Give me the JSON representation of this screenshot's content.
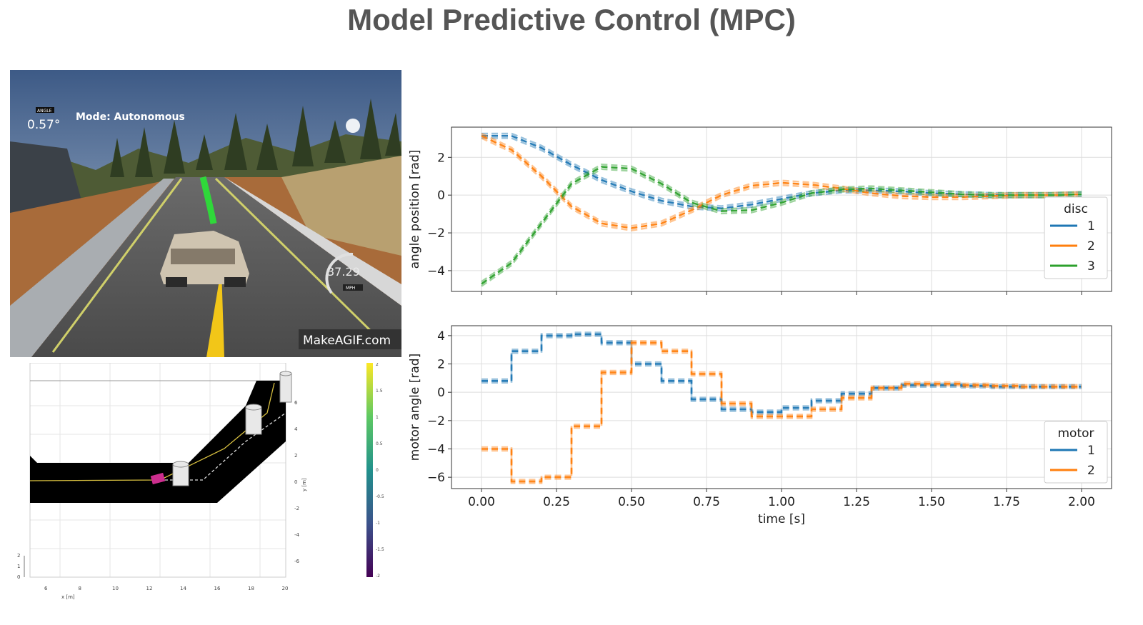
{
  "title": "Model Predictive Control (MPC)",
  "game": {
    "angle_badge": "ANGLE",
    "angle_value": "0.57°",
    "mode": "Mode: Autonomous",
    "speed": "37.29",
    "speed_unit": "MPH",
    "watermark": "MakeAGIF.com"
  },
  "sim": {
    "x_ticks": [
      "6",
      "8",
      "10",
      "12",
      "14",
      "16",
      "18",
      "20"
    ],
    "x_label": "x [m]",
    "y_ticks": [
      "6",
      "4",
      "2",
      "0",
      "-2",
      "-4",
      "-6"
    ],
    "y_label": "y [m]",
    "z_ticks": [
      "2",
      "1",
      "0"
    ],
    "colorbar_ticks": [
      "2",
      "1.5",
      "1",
      "0.5",
      "0",
      "-0.5",
      "-1",
      "-1.5",
      "-2"
    ]
  },
  "chart_data": [
    {
      "type": "line",
      "ylabel": "angle position [rad]",
      "xlabel": "",
      "xlim": [
        -0.1,
        2.1
      ],
      "ylim": [
        -5.1,
        3.6
      ],
      "yticks": [
        2,
        0,
        -2,
        -4
      ],
      "xticks": [
        0,
        0.25,
        0.5,
        0.75,
        1.0,
        1.25,
        1.5,
        1.75,
        2.0
      ],
      "grid": true,
      "legend": {
        "title": "disc",
        "placement": "right"
      },
      "series": [
        {
          "name": "1",
          "color": "#1f77b4",
          "x": [
            0.0,
            0.1,
            0.2,
            0.3,
            0.4,
            0.5,
            0.6,
            0.7,
            0.8,
            0.9,
            1.0,
            1.1,
            1.2,
            1.3,
            1.4,
            1.5,
            1.6,
            1.7,
            1.8,
            1.9,
            2.0
          ],
          "y": [
            3.14,
            3.14,
            2.5,
            1.6,
            0.8,
            0.2,
            -0.3,
            -0.6,
            -0.7,
            -0.5,
            -0.2,
            0.1,
            0.25,
            0.25,
            0.2,
            0.1,
            0.05,
            0.0,
            0.0,
            0.0,
            0.05
          ]
        },
        {
          "name": "2",
          "color": "#ff7f0e",
          "x": [
            0.0,
            0.1,
            0.2,
            0.3,
            0.4,
            0.5,
            0.6,
            0.7,
            0.8,
            0.9,
            1.0,
            1.1,
            1.2,
            1.3,
            1.4,
            1.5,
            1.6,
            1.7,
            1.8,
            1.9,
            2.0
          ],
          "y": [
            3.14,
            2.4,
            1.0,
            -0.6,
            -1.5,
            -1.75,
            -1.5,
            -0.8,
            0.0,
            0.5,
            0.65,
            0.55,
            0.35,
            0.1,
            -0.05,
            -0.1,
            -0.1,
            -0.05,
            0.0,
            0.0,
            0.05
          ]
        },
        {
          "name": "3",
          "color": "#2ca02c",
          "x": [
            0.0,
            0.1,
            0.2,
            0.3,
            0.4,
            0.5,
            0.6,
            0.7,
            0.8,
            0.9,
            1.0,
            1.1,
            1.2,
            1.3,
            1.4,
            1.5,
            1.6,
            1.7,
            1.8,
            1.9,
            2.0
          ],
          "y": [
            -4.7,
            -3.6,
            -1.5,
            0.6,
            1.5,
            1.4,
            0.6,
            -0.4,
            -0.85,
            -0.8,
            -0.4,
            0.1,
            0.3,
            0.35,
            0.25,
            0.15,
            0.05,
            0.0,
            0.0,
            0.0,
            0.05
          ]
        }
      ]
    },
    {
      "type": "line",
      "ylabel": "motor angle [rad]",
      "xlabel": "time [s]",
      "xlim": [
        -0.1,
        2.1
      ],
      "ylim": [
        -6.8,
        4.7
      ],
      "yticks": [
        4,
        2,
        0,
        -2,
        -4,
        -6
      ],
      "xticks": [
        0,
        0.25,
        0.5,
        0.75,
        1.0,
        1.25,
        1.5,
        1.75,
        2.0
      ],
      "xtick_labels": [
        "0.00",
        "0.25",
        "0.50",
        "0.75",
        "1.00",
        "1.25",
        "1.50",
        "1.75",
        "2.00"
      ],
      "grid": true,
      "legend": {
        "title": "motor",
        "placement": "lower right"
      },
      "series": [
        {
          "name": "1",
          "color": "#1f77b4",
          "x": [
            0.0,
            0.1,
            0.2,
            0.3,
            0.4,
            0.5,
            0.6,
            0.7,
            0.8,
            0.9,
            1.0,
            1.1,
            1.2,
            1.3,
            1.4,
            1.5,
            1.6,
            1.7,
            1.8,
            1.9
          ],
          "y": [
            0.8,
            2.9,
            4.0,
            4.1,
            3.5,
            2.0,
            0.8,
            -0.5,
            -1.2,
            -1.4,
            -1.1,
            -0.6,
            -0.1,
            0.3,
            0.5,
            0.5,
            0.45,
            0.4,
            0.4,
            0.4
          ]
        },
        {
          "name": "2",
          "color": "#ff7f0e",
          "x": [
            0.0,
            0.1,
            0.2,
            0.3,
            0.4,
            0.5,
            0.6,
            0.7,
            0.8,
            0.9,
            1.0,
            1.1,
            1.2,
            1.3,
            1.4,
            1.5,
            1.6,
            1.7,
            1.8,
            1.9
          ],
          "y": [
            -4.0,
            -6.3,
            -6.0,
            -2.4,
            1.4,
            3.5,
            2.9,
            1.3,
            -0.8,
            -1.7,
            -1.7,
            -1.2,
            -0.4,
            0.3,
            0.6,
            0.6,
            0.5,
            0.45,
            0.4,
            0.4
          ]
        }
      ]
    }
  ]
}
